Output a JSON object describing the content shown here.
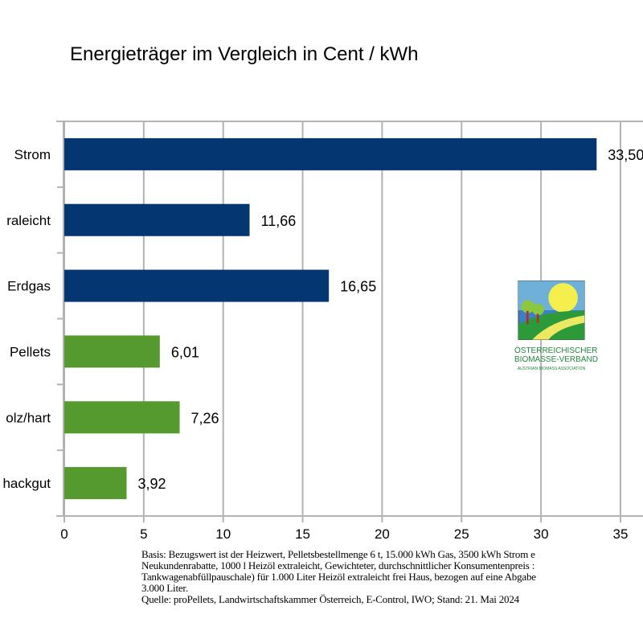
{
  "chart_data": {
    "type": "bar",
    "orientation": "horizontal",
    "title": "Energieträger im Vergleich in Cent / kWh",
    "categories": [
      "Strom",
      "raleicht",
      "Erdgas",
      "Pellets",
      "olz/hart",
      "hackgut"
    ],
    "values": [
      33.5,
      11.66,
      16.65,
      6.01,
      7.26,
      3.92
    ],
    "value_labels": [
      "33,50",
      "11,66",
      "16,65",
      "6,01",
      "7,26",
      "3,92"
    ],
    "bar_colors": [
      "#043672",
      "#043672",
      "#043672",
      "#559a2e",
      "#559a2e",
      "#559a2e"
    ],
    "xlim": [
      0,
      40
    ],
    "x_ticks": [
      "0",
      "5",
      "10",
      "15",
      "20",
      "25",
      "30",
      "35"
    ],
    "grid": "vertical",
    "xlabel": "",
    "ylabel": ""
  },
  "footnote": [
    "Basis: Bezugswert ist der Heizwert, Pelletsbestellmenge 6 t, 15.000 kWh Gas, 3500 kWh Strom e",
    "Neukundenrabatte, 1000 l Heizöl extraleicht, Gewichteter, durchschnittlicher Konsumentenpreis :",
    "Tankwagenabfüllpauschale) für 1.000 Liter Heizöl extraleicht frei Haus, bezogen auf eine Abgabe",
    "3.000 Liter.",
    "Quelle: proPellets, Landwirtschaftskammer Österreich, E-Control, IWO; Stand: 21. Mai 2024"
  ],
  "logo": {
    "line1": "ÖSTERREICHISCHER",
    "line2": "BIOMASSE-VERBAND",
    "line3": "AUSTRIAN BIOMASS ASSOCIATION"
  }
}
